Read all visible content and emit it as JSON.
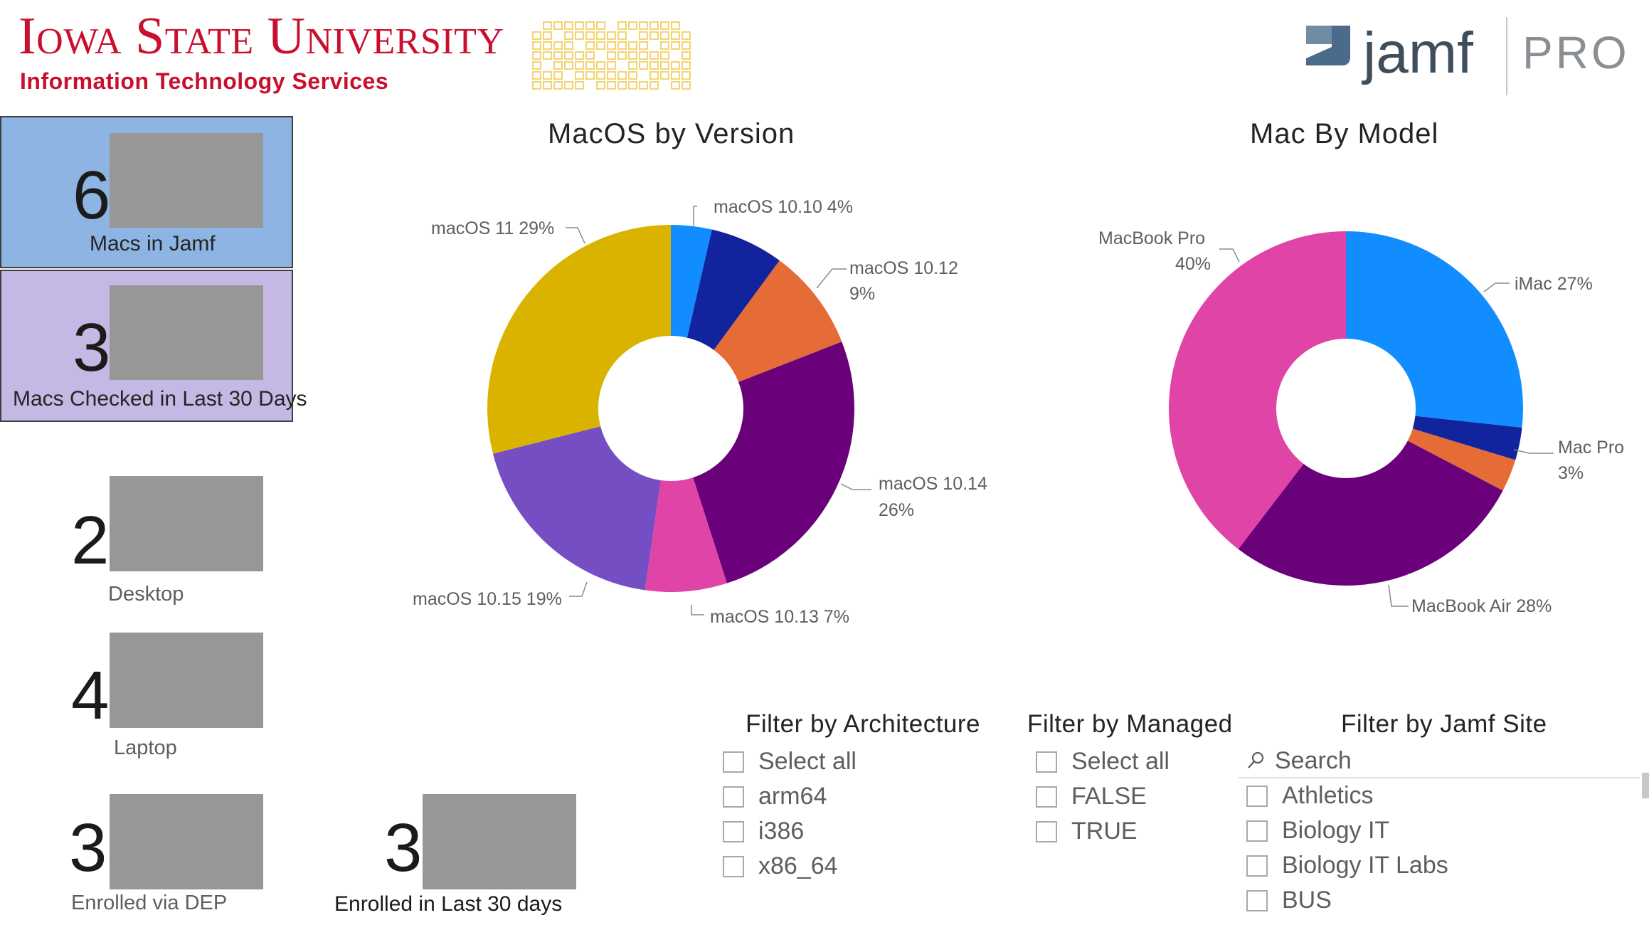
{
  "header": {
    "university": "Iowa State University",
    "department": "Information Technology Services",
    "jamf_word": "jamf",
    "pro_word": "PRO"
  },
  "kpis": {
    "macs_in_jamf": {
      "value": "6",
      "label": "Macs in Jamf",
      "color": "#8DB4E2"
    },
    "macs_checked": {
      "value": "3",
      "label": "Macs Checked in Last 30 Days",
      "color": "#C5B8E5"
    },
    "desktop": {
      "value": "2",
      "label": "Desktop"
    },
    "laptop": {
      "value": "4",
      "label": "Laptop"
    },
    "dep": {
      "value": "3",
      "label": "Enrolled via DEP"
    },
    "recent": {
      "value": "3",
      "label": "Enrolled in Last 30 days"
    }
  },
  "chart_data": [
    {
      "type": "pie",
      "title": "MacOS by Version",
      "categories": [
        "macOS 10.10",
        "macOS 10.12",
        "macOS 10.14",
        "macOS 10.13",
        "macOS 10.15",
        "macOS 11"
      ],
      "values": [
        4,
        9,
        26,
        7,
        19,
        29
      ],
      "labels": [
        "macOS 10.10 4%",
        "macOS 10.12",
        "9%",
        "macOS 10.14",
        "26%",
        "macOS 10.13 7%",
        "macOS 10.15 19%",
        "macOS 11 29%"
      ],
      "colors": [
        "#118DFF",
        "#12239E",
        "#E66C37",
        "#6B007B",
        "#E044A7",
        "#744EC2",
        "#D9B300"
      ]
    },
    {
      "type": "pie",
      "title": "Mac By Model",
      "categories": [
        "iMac",
        "Mac Pro",
        "MacBook Air",
        "MacBook Pro"
      ],
      "values": [
        27,
        3,
        28,
        40
      ],
      "labels": [
        "iMac 27%",
        "Mac Pro",
        "3%",
        "MacBook Air 28%",
        "MacBook Pro",
        "40%"
      ],
      "colors": [
        "#118DFF",
        "#12239E",
        "#E66C37",
        "#6B007B",
        "#E044A7"
      ]
    }
  ],
  "filters": {
    "architecture": {
      "title": "Filter by Architecture",
      "options": [
        "Select all",
        "arm64",
        "i386",
        "x86_64"
      ]
    },
    "managed": {
      "title": "Filter by Managed",
      "options": [
        "Select all",
        "FALSE",
        "TRUE"
      ]
    },
    "site": {
      "title": "Filter by Jamf Site",
      "search_placeholder": "Search",
      "options": [
        "Athletics",
        "Biology IT",
        "Biology IT Labs",
        "BUS"
      ]
    }
  },
  "colors": {
    "isu_red": "#C8102E",
    "jamf_blue": "#4A6C8A",
    "redaction": "#979797"
  }
}
